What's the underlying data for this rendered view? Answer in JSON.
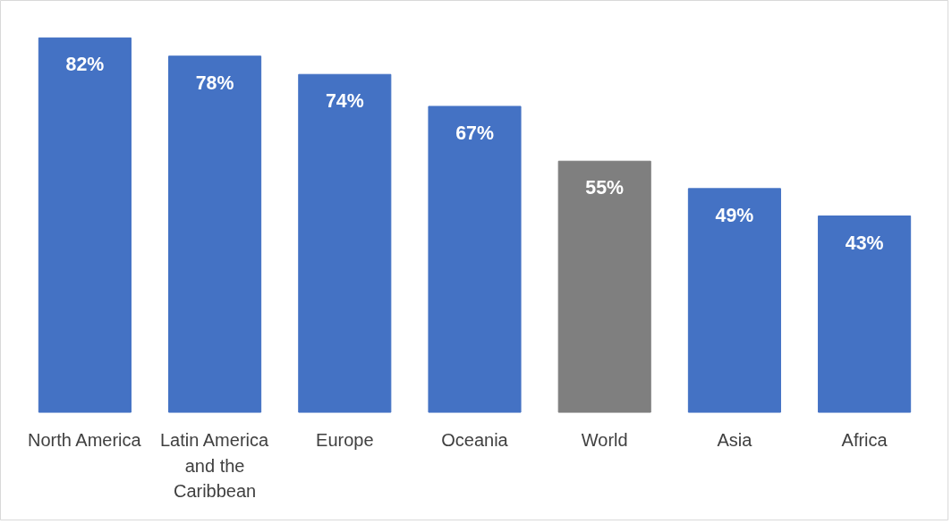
{
  "chart_data": {
    "type": "bar",
    "categories": [
      "North America",
      "Latin America and the Caribbean",
      "Europe",
      "Oceania",
      "World",
      "Asia",
      "Africa"
    ],
    "values": [
      82,
      78,
      74,
      67,
      55,
      49,
      43
    ],
    "colors": [
      "#4472c4",
      "#4472c4",
      "#4472c4",
      "#4472c4",
      "#7f7f7f",
      "#4472c4",
      "#4472c4"
    ],
    "value_labels": [
      "82%",
      "78%",
      "74%",
      "67%",
      "55%",
      "49%",
      "43%"
    ],
    "grid": false
  }
}
